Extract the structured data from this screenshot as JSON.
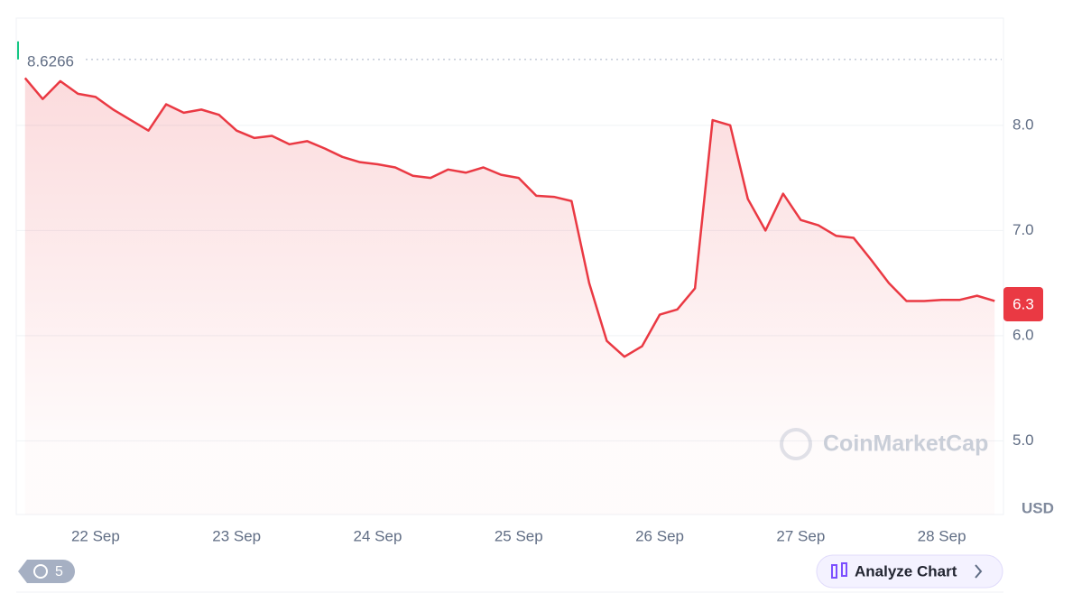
{
  "chart_data": {
    "type": "line",
    "categories": [
      null,
      null,
      null,
      null,
      "22 Sep",
      null,
      null,
      null,
      null,
      null,
      null,
      null,
      "23 Sep",
      null,
      null,
      null,
      null,
      null,
      null,
      null,
      "24 Sep",
      null,
      null,
      null,
      null,
      null,
      null,
      null,
      "25 Sep",
      null,
      null,
      null,
      null,
      null,
      null,
      null,
      "26 Sep",
      null,
      null,
      null,
      null,
      null,
      null,
      null,
      "27 Sep",
      null,
      null,
      null,
      null,
      null,
      null,
      null,
      "28 Sep",
      null,
      null,
      null
    ],
    "series": [
      {
        "color": "#ea3943",
        "values": [
          8.45,
          8.25,
          8.42,
          8.3,
          8.27,
          8.15,
          8.05,
          7.95,
          8.2,
          8.12,
          8.15,
          8.1,
          7.95,
          7.88,
          7.9,
          7.82,
          7.85,
          7.78,
          7.7,
          7.65,
          7.63,
          7.6,
          7.52,
          7.5,
          7.58,
          7.55,
          7.6,
          7.53,
          7.5,
          7.33,
          7.32,
          7.28,
          6.5,
          5.95,
          5.8,
          5.9,
          6.2,
          6.25,
          6.45,
          8.05,
          8.0,
          7.3,
          7.0,
          7.35,
          7.1,
          7.05,
          6.95,
          6.93,
          6.72,
          6.5,
          6.33,
          6.33,
          6.34,
          6.34,
          6.38,
          6.33
        ]
      }
    ],
    "ylim": [
      4.3,
      9.02
    ],
    "yticks": [
      {
        "value": 5,
        "label": "5.0"
      },
      {
        "value": 6,
        "label": "6.0"
      },
      {
        "value": 7,
        "label": "7.0"
      },
      {
        "value": 8,
        "label": "8.0"
      }
    ],
    "grid": true,
    "high_marker": 8.6266,
    "last_price": 6.3,
    "currency": "USD",
    "watermark": "CoinMarketCap"
  },
  "controls": {
    "history_count": 5,
    "analyze_button": "Analyze Chart"
  }
}
